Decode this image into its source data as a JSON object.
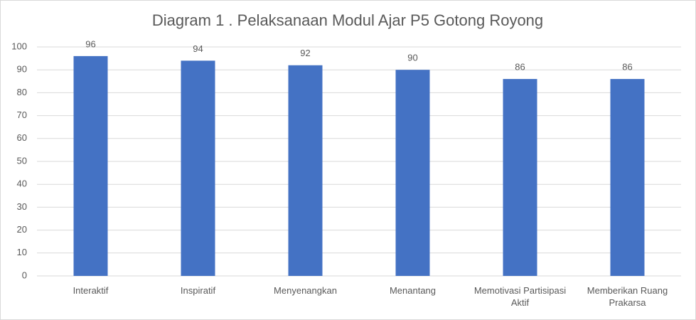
{
  "chart_data": {
    "type": "bar",
    "title": "Diagram 1 . Pelaksanaan Modul Ajar P5 Gotong Royong",
    "categories": [
      "Interaktif",
      "Inspiratif",
      "Menyenangkan",
      "Menantang",
      "Memotivasi Partisipasi Aktif",
      "Memberikan Ruang Prakarsa"
    ],
    "values": [
      96,
      94,
      92,
      90,
      86,
      86
    ],
    "color": "#4472c4",
    "ylim": [
      0,
      100
    ],
    "yticks": [
      0,
      10,
      20,
      30,
      40,
      50,
      60,
      70,
      80,
      90,
      100
    ],
    "grid": true
  }
}
